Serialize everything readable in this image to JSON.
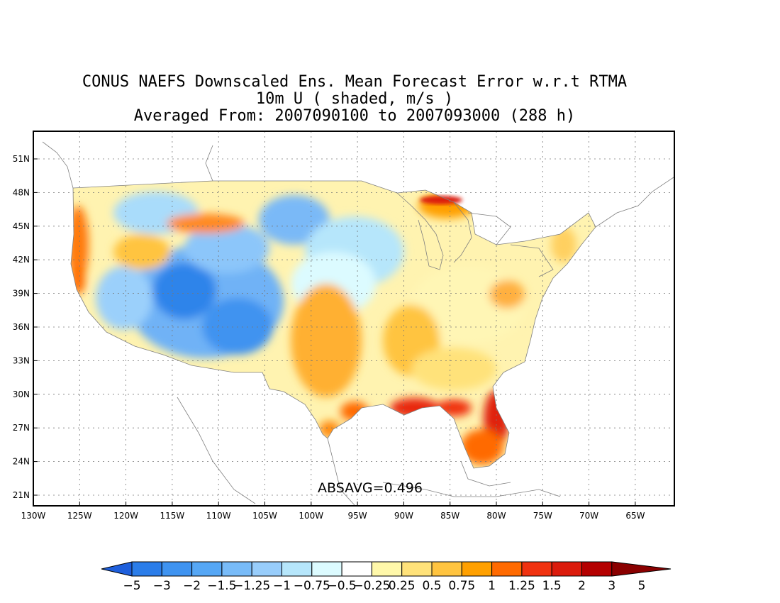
{
  "titles": [
    "CONUS NAEFS Downscaled Ens. Mean Forecast Error w.r.t RTMA",
    "10m U ( shaded, m/s )",
    "Averaged From: 2007090100 to 2007093000 (288 h)"
  ],
  "annotation": "ABSAVG=0.496",
  "lon_labels": [
    "130W",
    "125W",
    "120W",
    "115W",
    "110W",
    "105W",
    "100W",
    "95W",
    "90W",
    "85W",
    "80W",
    "75W",
    "70W",
    "65W"
  ],
  "lat_labels": [
    "51N",
    "48N",
    "45N",
    "42N",
    "39N",
    "36N",
    "33N",
    "30N",
    "27N",
    "24N",
    "21N"
  ],
  "colorbar": {
    "colors": [
      "#1e5fdc",
      "#2b7de9",
      "#3f93f0",
      "#56a7f5",
      "#78bbf8",
      "#98cdfb",
      "#b6e6fb",
      "#dcfbff",
      "#ffffff",
      "#fff8aa",
      "#ffe27a",
      "#ffc440",
      "#ffa000",
      "#ff6a00",
      "#f03210",
      "#db1b0c",
      "#b40000",
      "#8a0000"
    ],
    "labels": [
      "−5",
      "−3",
      "−2",
      "−1.5",
      "−1.25",
      "−1",
      "−0.75",
      "−0.5",
      "−0.25",
      "0.25",
      "0.5",
      "0.75",
      "1",
      "1.25",
      "1.5",
      "2",
      "3",
      "5"
    ]
  }
}
